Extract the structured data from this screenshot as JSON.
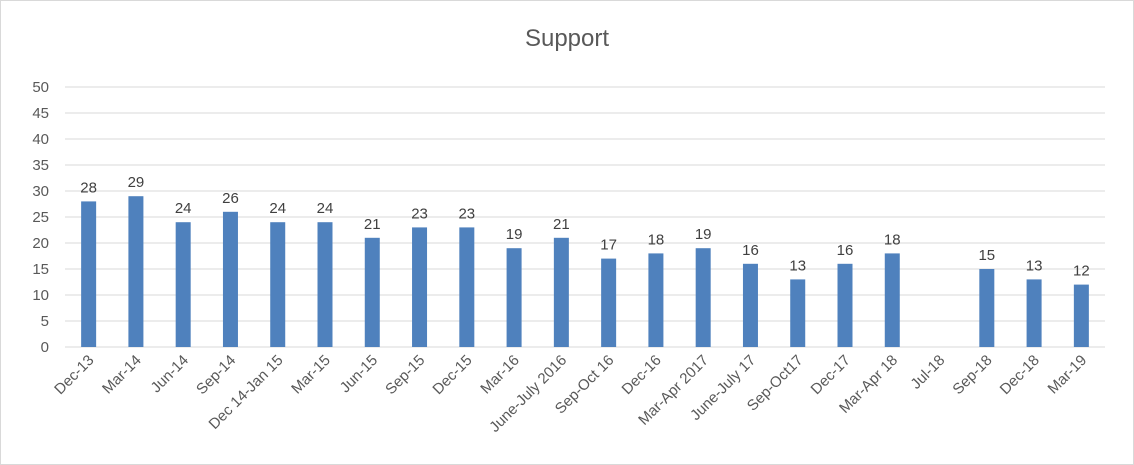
{
  "chart_data": {
    "type": "bar",
    "title": "Support",
    "xlabel": "",
    "ylabel": "",
    "ylim": [
      0,
      50
    ],
    "y_ticks": [
      0,
      5,
      10,
      15,
      20,
      25,
      30,
      35,
      40,
      45,
      50
    ],
    "grid": true,
    "legend": "none",
    "categories": [
      "Dec-13",
      "Mar-14",
      "Jun-14",
      "Sep-14",
      "Dec 14-Jan 15",
      "Mar-15",
      "Jun-15",
      "Sep-15",
      "Dec-15",
      "Mar-16",
      "June-July 2016",
      "Sep-Oct 16",
      "Dec-16",
      "Mar-Apr 2017",
      "June-July 17",
      "Sep-Oct17",
      "Dec-17",
      "Mar-Apr 18",
      "Jul-18",
      "Sep-18",
      "Dec-18",
      "Mar-19"
    ],
    "values": [
      28,
      29,
      24,
      26,
      24,
      24,
      21,
      23,
      23,
      19,
      21,
      17,
      18,
      19,
      16,
      13,
      16,
      18,
      null,
      15,
      13,
      12
    ],
    "bar_color": "#4f81bd"
  }
}
